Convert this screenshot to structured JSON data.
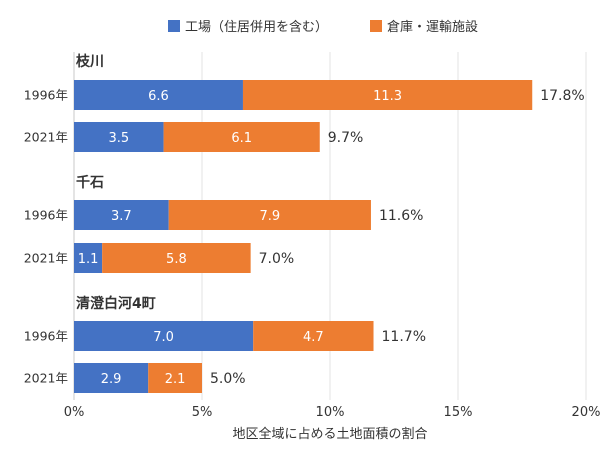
{
  "chart_data": {
    "type": "bar",
    "orientation": "horizontal",
    "stacked": true,
    "xlabel": "地区全域に占める土地面積の割合",
    "xlim": [
      0,
      20
    ],
    "xticks": [
      0,
      5,
      10,
      15,
      20
    ],
    "xtick_labels": [
      "0%",
      "5%",
      "10%",
      "15%",
      "20%"
    ],
    "grid": true,
    "legend_position": "top",
    "series": [
      {
        "name": "工場（住居併用を含む）",
        "color": "#4472C4"
      },
      {
        "name": "倉庫・運輸施設",
        "color": "#ED7D31"
      }
    ],
    "groups": [
      {
        "name": "枝川",
        "rows": [
          {
            "year": "1996年",
            "values": [
              6.6,
              11.3
            ],
            "labels": [
              "6.6",
              "11.3"
            ],
            "total_label": "17.8%"
          },
          {
            "year": "2021年",
            "values": [
              3.5,
              6.1
            ],
            "labels": [
              "3.5",
              "6.1"
            ],
            "total_label": "9.7%"
          }
        ]
      },
      {
        "name": "千石",
        "rows": [
          {
            "year": "1996年",
            "values": [
              3.7,
              7.9
            ],
            "labels": [
              "3.7",
              "7.9"
            ],
            "total_label": "11.6%"
          },
          {
            "year": "2021年",
            "values": [
              1.1,
              5.8
            ],
            "labels": [
              "1.1",
              "5.8"
            ],
            "total_label": "7.0%"
          }
        ]
      },
      {
        "name": "清澄白河4町",
        "rows": [
          {
            "year": "1996年",
            "values": [
              7.0,
              4.7
            ],
            "labels": [
              "7.0",
              "4.7"
            ],
            "total_label": "11.7%"
          },
          {
            "year": "2021年",
            "values": [
              2.9,
              2.1
            ],
            "labels": [
              "2.9",
              "2.1"
            ],
            "total_label": "5.0%"
          }
        ]
      }
    ]
  }
}
